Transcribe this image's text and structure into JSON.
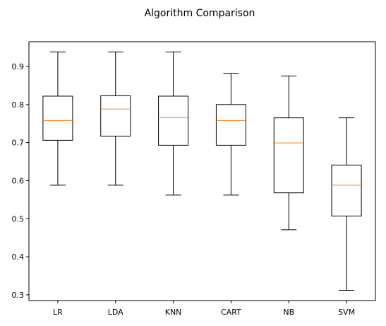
{
  "chart_data": {
    "type": "box",
    "title": "Algorithm Comparison",
    "xlabel": "",
    "ylabel": "",
    "categories": [
      "LR",
      "LDA",
      "KNN",
      "CART",
      "NB",
      "SVM"
    ],
    "ylim": [
      0.285,
      0.965
    ],
    "yticks": [
      0.3,
      0.4,
      0.5,
      0.6,
      0.7,
      0.8,
      0.9
    ],
    "ytick_labels": [
      "0.3",
      "0.4",
      "0.5",
      "0.6",
      "0.7",
      "0.8",
      "0.9"
    ],
    "grid": false,
    "boxes": [
      {
        "min": 0.588,
        "q1": 0.706,
        "median": 0.758,
        "q3": 0.822,
        "max": 0.938
      },
      {
        "min": 0.588,
        "q1": 0.717,
        "median": 0.788,
        "q3": 0.823,
        "max": 0.938
      },
      {
        "min": 0.562,
        "q1": 0.693,
        "median": 0.766,
        "q3": 0.822,
        "max": 0.938
      },
      {
        "min": 0.562,
        "q1": 0.693,
        "median": 0.758,
        "q3": 0.8,
        "max": 0.882
      },
      {
        "min": 0.471,
        "q1": 0.568,
        "median": 0.699,
        "q3": 0.765,
        "max": 0.875
      },
      {
        "min": 0.312,
        "q1": 0.507,
        "median": 0.588,
        "q3": 0.641,
        "max": 0.765
      }
    ],
    "colors": {
      "box": "#000000",
      "median": "#ff7f0e",
      "axis": "#000000"
    }
  }
}
